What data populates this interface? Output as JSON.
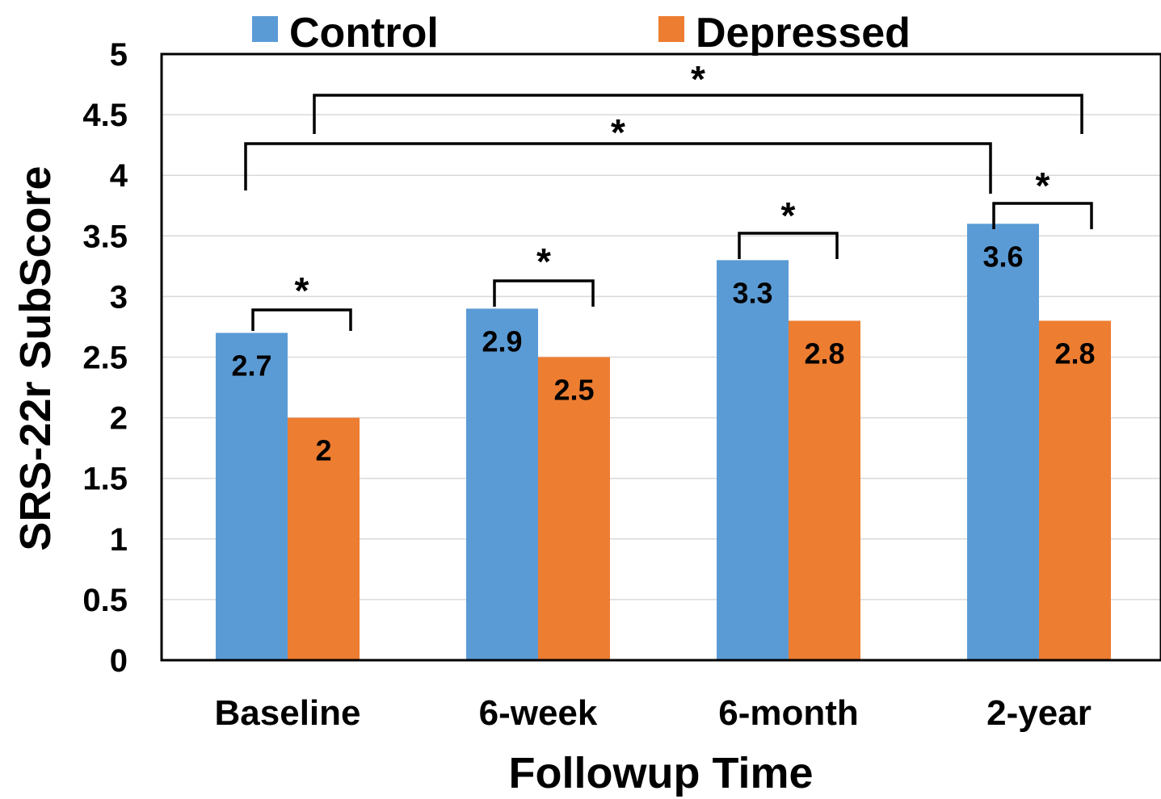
{
  "chart_data": {
    "type": "bar",
    "categories": [
      "Baseline",
      "6-week",
      "6-month",
      "2-year"
    ],
    "series": [
      {
        "name": "Control",
        "values": [
          2.7,
          2.9,
          3.3,
          3.6
        ],
        "labels": [
          "2.7",
          "2.9",
          "3.3",
          "3.6"
        ],
        "color": "#5b9bd5"
      },
      {
        "name": "Depressed",
        "values": [
          2.0,
          2.5,
          2.8,
          2.8
        ],
        "labels": [
          "2",
          "2.5",
          "2.8",
          "2.8"
        ],
        "color": "#ed7d31"
      }
    ],
    "xlabel": "Followup Time",
    "ylabel": "SRS-22r SubScore",
    "ylim": [
      0,
      5
    ],
    "yticks": [
      "0",
      "0.5",
      "1",
      "1.5",
      "2",
      "2.5",
      "3",
      "3.5",
      "4",
      "4.5",
      "5"
    ],
    "grid": true,
    "legend_position": "top",
    "significance": [
      {
        "mark": "*",
        "between": [
          "Baseline Control",
          "Baseline Depressed"
        ]
      },
      {
        "mark": "*",
        "between": [
          "6-week Control",
          "6-week Depressed"
        ]
      },
      {
        "mark": "*",
        "between": [
          "6-month Control",
          "6-month Depressed"
        ]
      },
      {
        "mark": "*",
        "between": [
          "2-year Control",
          "2-year Depressed"
        ]
      },
      {
        "mark": "*",
        "between": [
          "Baseline Control",
          "2-year Control"
        ]
      },
      {
        "mark": "*",
        "between": [
          "Baseline Depressed",
          "2-year Depressed"
        ]
      }
    ]
  }
}
